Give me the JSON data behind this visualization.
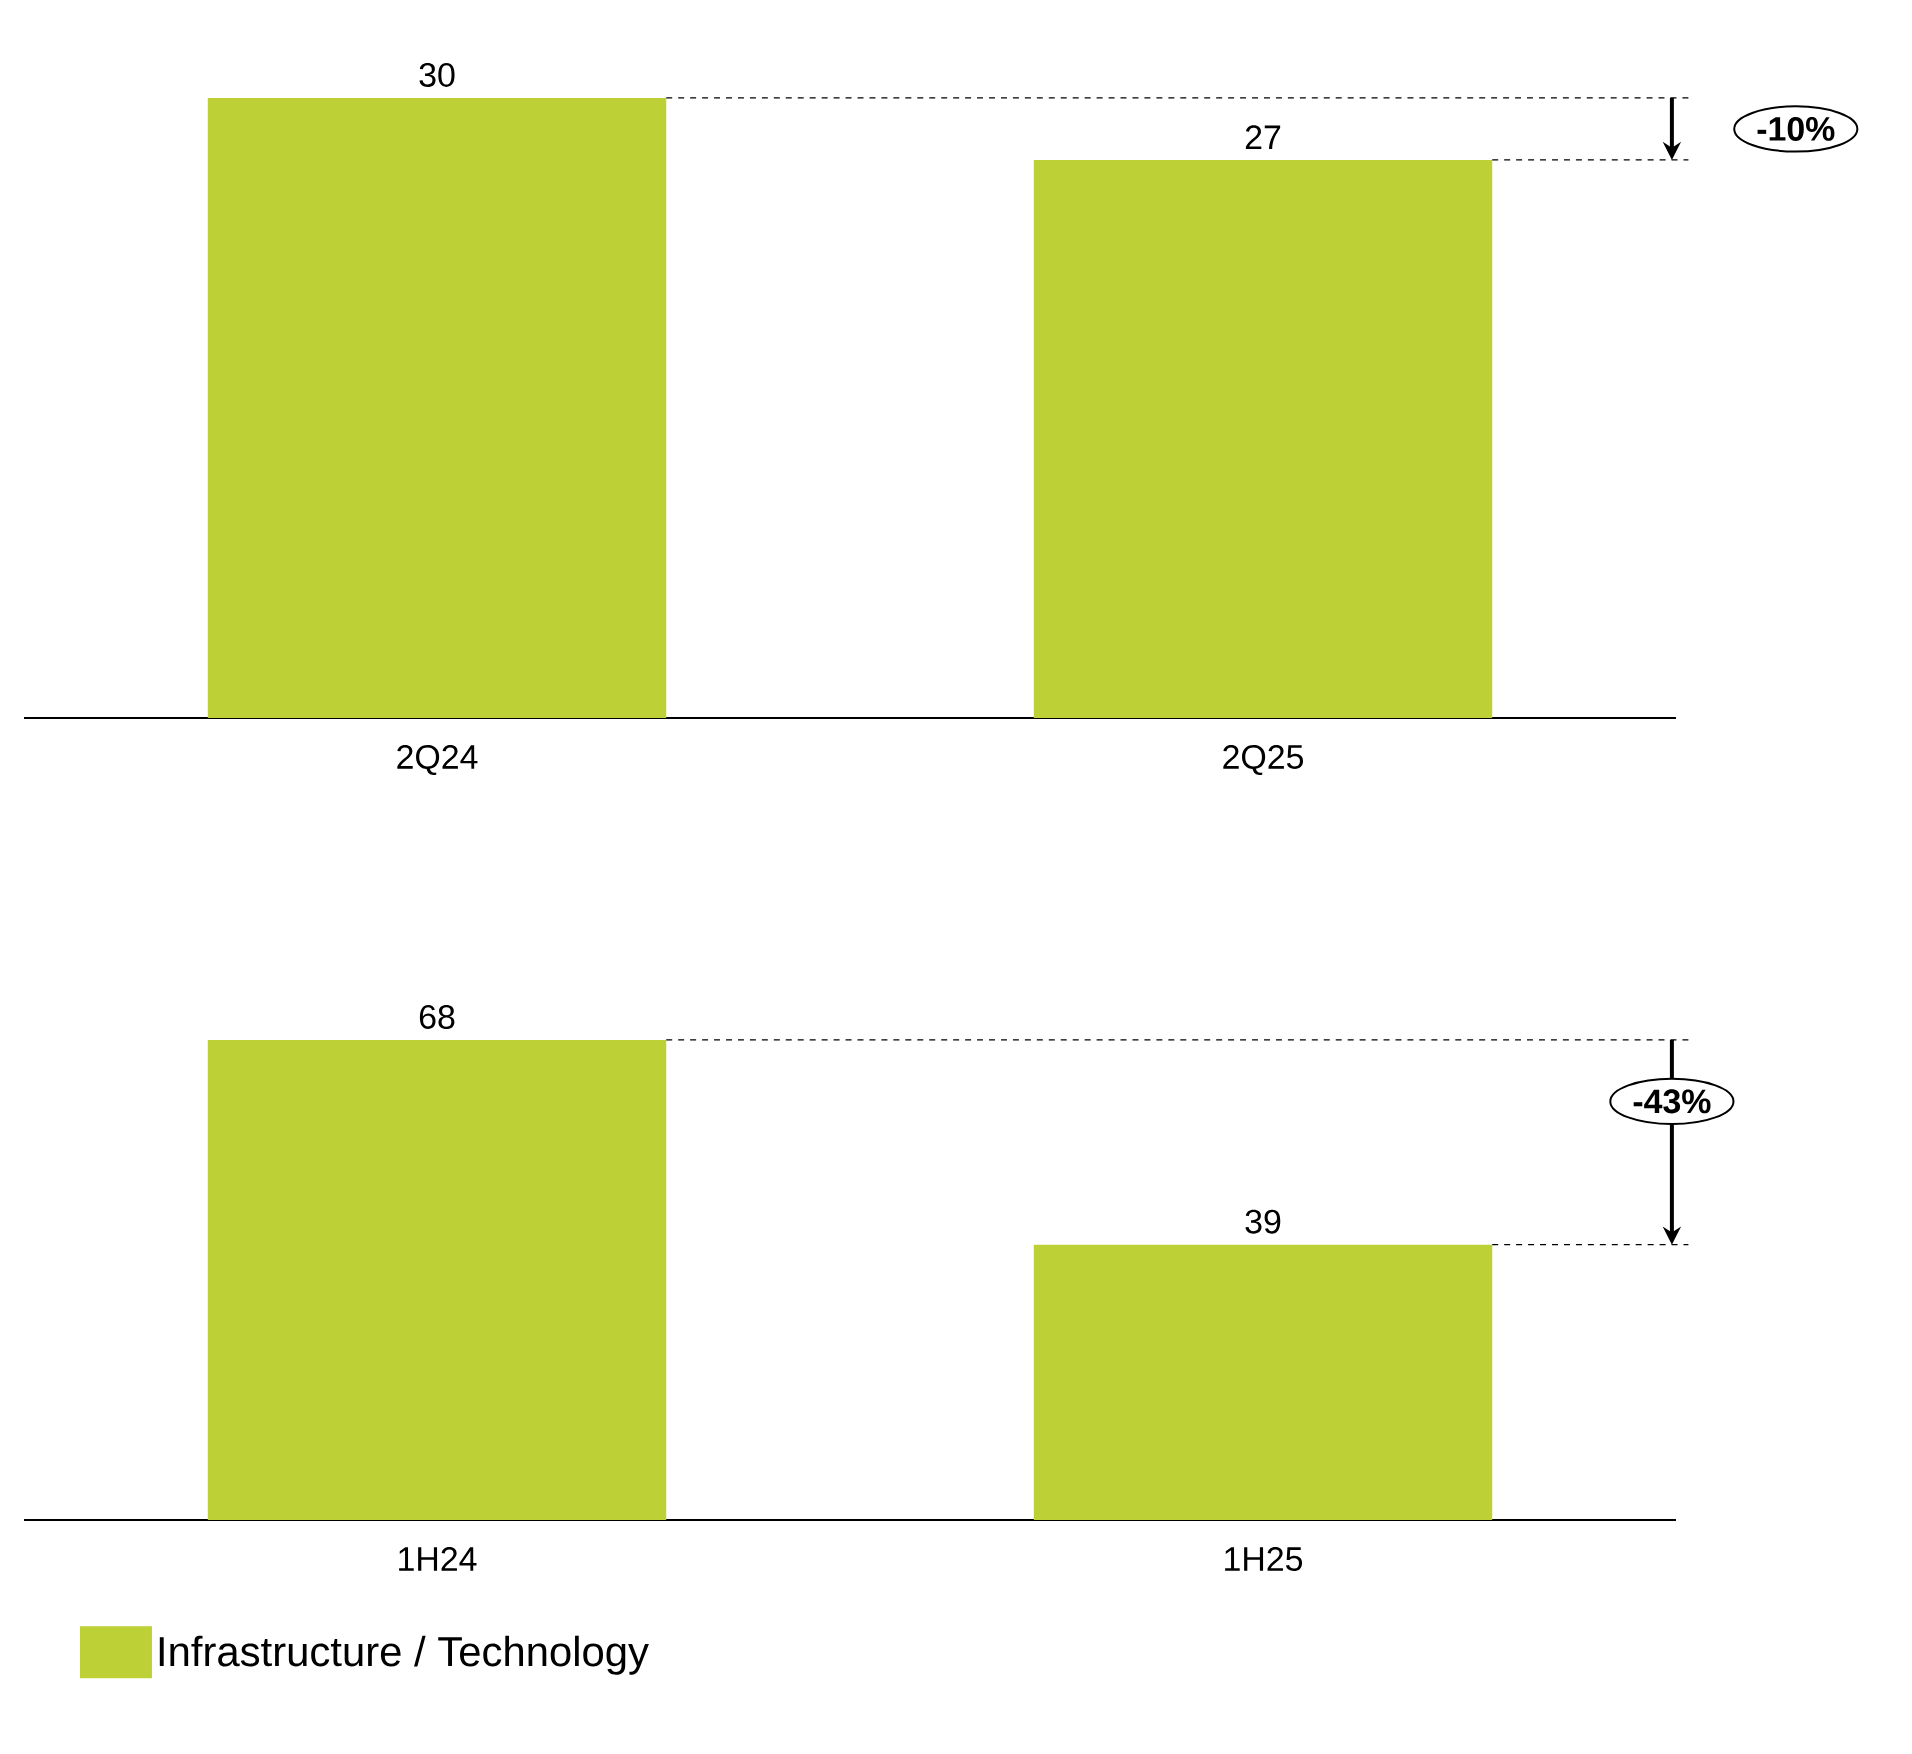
{
  "chart_data": [
    {
      "type": "bar",
      "categories": [
        "2Q24",
        "2Q25"
      ],
      "series": [
        {
          "color": "#bdd136",
          "values": [
            30,
            27
          ]
        }
      ],
      "data_labels": true,
      "annotations": [
        "-10%"
      ],
      "ref_lines": [
        {
          "axis": "y",
          "value": 30,
          "line_style": "dashed"
        },
        {
          "axis": "y",
          "value": 27,
          "line_style": "dashed"
        }
      ]
    },
    {
      "type": "bar",
      "categories": [
        "1H24",
        "1H25"
      ],
      "series": [
        {
          "name": "Infrastructure / Technology",
          "color": "#bdd136",
          "values": [
            68,
            39
          ]
        }
      ],
      "data_labels": true,
      "annotations": [
        "-43%"
      ],
      "legend": "bottom left",
      "ref_lines": [
        {
          "axis": "y",
          "value": 68,
          "line_style": "dashed"
        },
        {
          "axis": "y",
          "value": 39,
          "line_style": "dashed"
        }
      ]
    }
  ]
}
